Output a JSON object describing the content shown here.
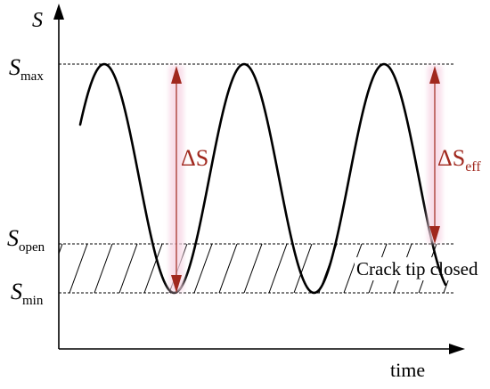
{
  "axes": {
    "y_label": "S",
    "x_label": "time"
  },
  "levels": {
    "max": {
      "base": "S",
      "sub": "max"
    },
    "open": {
      "base": "S",
      "sub": "open"
    },
    "min": {
      "base": "S",
      "sub": "min"
    }
  },
  "ranges": {
    "delta_s": {
      "symbol": "ΔS",
      "sub": ""
    },
    "delta_s_eff": {
      "symbol": "ΔS",
      "sub": "eff"
    }
  },
  "region_label": "Crack tip closed",
  "colors": {
    "curve": "#000000",
    "arrow": "#a0281e",
    "arrow_glow": "#f7d5e4",
    "dash": "#000000"
  }
}
